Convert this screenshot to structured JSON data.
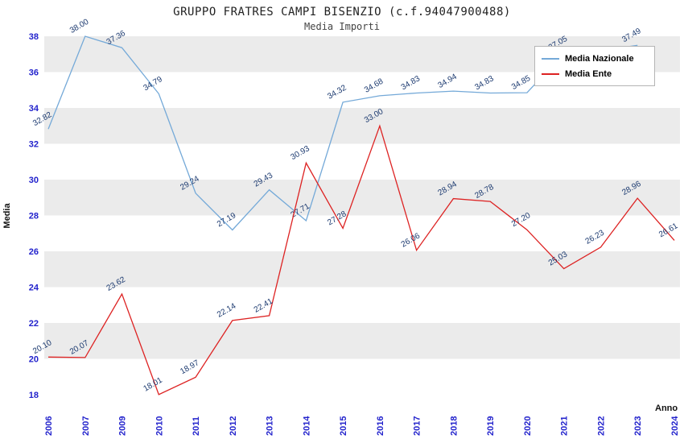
{
  "title": "GRUPPO FRATRES CAMPI BISENZIO (c.f.94047900488)",
  "subtitle": "Media Importi",
  "axes": {
    "y_title": "Media",
    "x_title": "Anno",
    "y_ticks": [
      18,
      20,
      22,
      24,
      26,
      28,
      30,
      32,
      34,
      36,
      38
    ]
  },
  "chart_data": {
    "type": "line",
    "title": "GRUPPO FRATRES CAMPI BISENZIO (c.f.94047900488)",
    "subtitle": "Media Importi",
    "xlabel": "Anno",
    "ylabel": "Media",
    "ylim": [
      18,
      38
    ],
    "grid": "banded",
    "band_color": "#ebebeb",
    "legend_position": "top-right",
    "categories": [
      "2006",
      "2007",
      "2009",
      "2010",
      "2011",
      "2012",
      "2013",
      "2014",
      "2015",
      "2016",
      "2017",
      "2018",
      "2019",
      "2020",
      "2021",
      "2022",
      "2023",
      "2024"
    ],
    "series": [
      {
        "name": "Media Nazionale",
        "color": "#74a9d8",
        "values": [
          32.82,
          38.0,
          37.36,
          34.79,
          29.24,
          27.19,
          29.43,
          27.71,
          34.32,
          34.68,
          34.83,
          34.94,
          34.83,
          34.85,
          37.05,
          37.2,
          37.49,
          null
        ],
        "labels": [
          "32.82",
          "38.00",
          "37.36",
          "34.79",
          "29.24",
          "27.19",
          "29.43",
          "27.71",
          "34.32",
          "34.68",
          "34.83",
          "34.94",
          "34.83",
          "34.85",
          "37.05",
          "",
          "37.49",
          ""
        ]
      },
      {
        "name": "Media Ente",
        "color": "#dd2222",
        "values": [
          20.1,
          20.07,
          23.62,
          18.01,
          18.97,
          22.14,
          22.41,
          30.93,
          27.28,
          33.0,
          26.06,
          28.94,
          28.78,
          27.2,
          25.03,
          26.23,
          28.96,
          26.61
        ],
        "labels": [
          "20.10",
          "20.07",
          "23.62",
          "18.01",
          "18.97",
          "22.14",
          "22.41",
          "30.93",
          "27.28",
          "33.00",
          "26.06",
          "28.94",
          "28.78",
          "27.20",
          "25.03",
          "26.23",
          "28.96",
          "26.61"
        ]
      }
    ]
  }
}
